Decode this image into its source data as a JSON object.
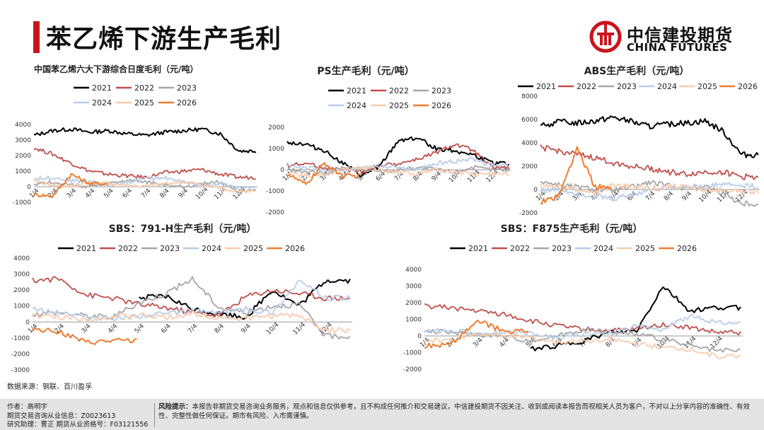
{
  "header": {
    "title": "苯乙烯下游生产毛利"
  },
  "logo": {
    "cn": "中信建投期货",
    "en": "CHINA FUTURES"
  },
  "series_names": [
    "2021",
    "2022",
    "2023",
    "2024",
    "2025",
    "2026"
  ],
  "series_colors": [
    "#000000",
    "#c0504d",
    "#a6a6a6",
    "#b8cde8",
    "#f8cbad",
    "#ed7d31"
  ],
  "footer": {
    "source": "数据来源：钢联、百川盈孚",
    "author_line": "作者：高明宇",
    "license_line": "期货交易咨询从业信息：Z0023613",
    "assistant_line": "研究助理：曹正   期货从业资格号：F03121556",
    "risk_label": "风险提示：",
    "risk_text": "本报告非期货交易咨询业务服务，观点和信息仅供参考，且不构成任何推介和交易建议，中信建投期货不因关注、收到或阅读本报告而视相关人员为客户，不对以上分享内容的准确性、有效性、完整性做任何保证。期市有风险、入市需谨慎。"
  },
  "chart_data": [
    {
      "type": "line",
      "title": "中国苯乙烯六大下游综合日度毛利（元/吨）",
      "yticks": [
        "4000",
        "3000",
        "2000",
        "1000",
        "0",
        "-1000"
      ],
      "ylim": [
        -1000,
        4000
      ],
      "xticks": [
        "1/4",
        "2/4",
        "3/4",
        "4/4",
        "5/4",
        "6/4",
        "7/4",
        "8/4",
        "9/4",
        "10/4",
        "11/4",
        "12/4"
      ],
      "series": [
        {
          "name": "2021",
          "values": [
            3300,
            3600,
            3700,
            3500,
            3600,
            3400,
            3300,
            3500,
            3600,
            3700,
            3400,
            2300
          ]
        },
        {
          "name": "2022",
          "values": [
            2500,
            2100,
            1500,
            1000,
            800,
            700,
            600,
            900,
            1000,
            1100,
            800,
            600
          ]
        },
        {
          "name": "2023",
          "values": [
            200,
            300,
            100,
            0,
            200,
            400,
            300,
            100,
            0,
            200,
            300,
            -300
          ]
        },
        {
          "name": "2024",
          "values": [
            500,
            600,
            400,
            300,
            100,
            300,
            500,
            600,
            300,
            100,
            200,
            -100
          ]
        },
        {
          "name": "2025",
          "values": [
            400,
            100,
            0,
            300,
            200,
            100,
            0,
            200,
            300,
            100,
            -100,
            -300
          ]
        },
        {
          "name": "2026",
          "values": [
            -500,
            -600,
            800,
            200
          ]
        }
      ]
    },
    {
      "type": "line",
      "title": "PS生产毛利（元/吨）",
      "yticks": [
        "2000",
        "1000",
        "0",
        "-1000",
        "-2000"
      ],
      "ylim": [
        -2000,
        2000
      ],
      "xticks": [
        "1/4",
        "2/4",
        "3/4",
        "4/4",
        "5/4",
        "6/4",
        "7/4",
        "8/4",
        "9/4",
        "10/4",
        "11/4",
        "12/4"
      ],
      "series": [
        {
          "name": "2021",
          "values": [
            1300,
            1200,
            900,
            300,
            -300,
            200,
            1400,
            1500,
            1000,
            900,
            700,
            300
          ]
        },
        {
          "name": "2022",
          "values": [
            200,
            300,
            100,
            0,
            -100,
            200,
            300,
            500,
            800,
            1200,
            900,
            100
          ]
        },
        {
          "name": "2023",
          "values": [
            0,
            -100,
            -200,
            100,
            0,
            -100,
            0,
            100,
            0,
            -100,
            100,
            0
          ]
        },
        {
          "name": "2024",
          "values": [
            200,
            100,
            0,
            -100,
            100,
            200,
            100,
            0,
            300,
            400,
            500,
            200
          ]
        },
        {
          "name": "2025",
          "values": [
            -200,
            -300,
            -200,
            0,
            100,
            0,
            -100,
            -200,
            0,
            -100,
            -200,
            -200
          ]
        },
        {
          "name": "2026",
          "values": [
            -200,
            -700,
            300,
            -300
          ]
        }
      ]
    },
    {
      "type": "line",
      "title": "ABS生产毛利（元/吨）",
      "yticks": [
        "8000",
        "6000",
        "4000",
        "2000",
        "0",
        "-2000"
      ],
      "ylim": [
        -2000,
        8000
      ],
      "xticks": [
        "1/4",
        "2/4",
        "3/4",
        "4/4",
        "5/4",
        "6/4",
        "7/4",
        "8/4",
        "9/4",
        "10/4",
        "11/4",
        "12/4"
      ],
      "series": [
        {
          "name": "2021",
          "values": [
            5400,
            5800,
            5700,
            5900,
            6200,
            5800,
            5400,
            5600,
            5700,
            5900,
            5000,
            3000
          ]
        },
        {
          "name": "2022",
          "values": [
            3600,
            3300,
            3000,
            2700,
            2300,
            2000,
            1800,
            1500,
            1300,
            1500,
            1500,
            1100
          ]
        },
        {
          "name": "2023",
          "values": [
            700,
            400,
            200,
            0,
            -100,
            200,
            600,
            300,
            100,
            300,
            -300,
            -1200
          ]
        },
        {
          "name": "2024",
          "values": [
            -100,
            0,
            -300,
            -600,
            -800,
            -400,
            0,
            200,
            300,
            200,
            500,
            300
          ]
        },
        {
          "name": "2025",
          "values": [
            300,
            200,
            0,
            -300,
            400,
            200,
            100,
            300,
            200,
            -100,
            0,
            -200
          ]
        },
        {
          "name": "2026",
          "values": [
            -1000,
            -600,
            3600,
            200
          ]
        }
      ]
    },
    {
      "type": "line",
      "title": "SBS：791-H生产毛利（元/吨）",
      "yticks": [
        "4000",
        "3000",
        "2000",
        "1000",
        "0",
        "-1000",
        "-2000",
        "-3000"
      ],
      "ylim": [
        -3000,
        4000
      ],
      "xticks": [
        "1/4",
        "2/4",
        "3/4",
        "4/4",
        "5/4",
        "6/4",
        "7/4",
        "8/4",
        "9/4",
        "10/4",
        "11/4",
        "12/4"
      ],
      "series": [
        {
          "name": "2021",
          "values": [
            null,
            null,
            null,
            null,
            1500,
            1600,
            800,
            500,
            300,
            2000,
            1000,
            2600
          ]
        },
        {
          "name": "2022",
          "values": [
            2600,
            2700,
            1700,
            1500,
            1100,
            900,
            600,
            400,
            1600,
            2000,
            1800,
            1500
          ]
        },
        {
          "name": "2023",
          "values": [
            500,
            600,
            400,
            300,
            1200,
            1800,
            2700,
            900,
            600,
            1000,
            1100,
            -900
          ]
        },
        {
          "name": "2024",
          "values": [
            800,
            600,
            300,
            200,
            400,
            500,
            700,
            600,
            800,
            600,
            2600,
            1500
          ]
        },
        {
          "name": "2025",
          "values": [
            400,
            300,
            200,
            300,
            400,
            300,
            500,
            300,
            200,
            400,
            400,
            -500
          ]
        },
        {
          "name": "2026",
          "values": [
            -400,
            -600,
            -1300,
            -1200
          ]
        }
      ]
    },
    {
      "type": "line",
      "title": "SBS：F875生产毛利（元/吨）",
      "yticks": [
        "4000",
        "3000",
        "2000",
        "1000",
        "0",
        "-1000",
        "-2000"
      ],
      "ylim": [
        -2000,
        4000
      ],
      "xticks": [
        "1/4",
        "2/4",
        "3/4",
        "4/4",
        "5/4",
        "6/4",
        "7/4",
        "8/4",
        "9/4",
        "10/4",
        "11/4",
        "12/4"
      ],
      "series": [
        {
          "name": "2021",
          "values": [
            null,
            null,
            null,
            null,
            -800,
            -600,
            -300,
            200,
            300,
            3000,
            1500,
            1700
          ]
        },
        {
          "name": "2022",
          "values": [
            1800,
            1700,
            1500,
            1300,
            900,
            600,
            400,
            300,
            400,
            700,
            500,
            200
          ]
        },
        {
          "name": "2023",
          "values": [
            300,
            200,
            100,
            0,
            -300,
            0,
            400,
            200,
            100,
            -200,
            -600,
            -900
          ]
        },
        {
          "name": "2024",
          "values": [
            300,
            300,
            200,
            200,
            100,
            -100,
            100,
            200,
            600,
            400,
            1200,
            800
          ]
        },
        {
          "name": "2025",
          "values": [
            -300,
            -200,
            100,
            0,
            -100,
            -400,
            -300,
            -200,
            -500,
            -700,
            -800,
            -1200
          ]
        },
        {
          "name": "2026",
          "values": [
            -600,
            -500,
            900,
            300
          ]
        }
      ]
    }
  ]
}
